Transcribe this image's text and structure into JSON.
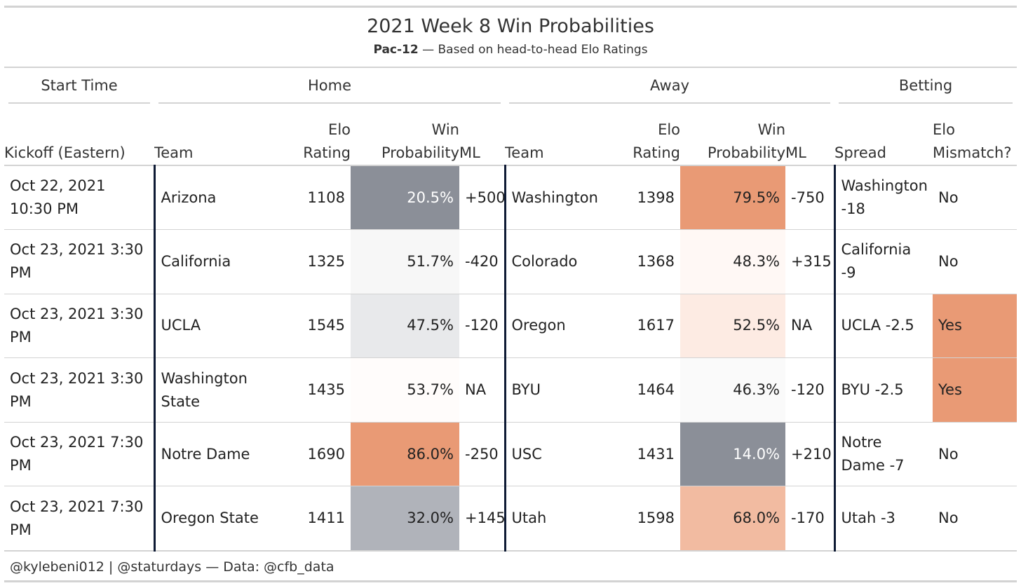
{
  "title": "2021 Week 8 Win Probabilities",
  "subtitle": {
    "bold": "Pac-12",
    "rest": " — Based on head-to-head Elo Ratings"
  },
  "spanners": {
    "start_time": "Start Time",
    "home": "Home",
    "away": "Away",
    "betting": "Betting"
  },
  "columns": {
    "kickoff": "Kickoff (Eastern)",
    "home_team": "Team",
    "home_elo_1": "Elo",
    "home_elo_2": "Rating",
    "home_wp_1": "Win",
    "home_wp_2": "Probability",
    "home_ml": "ML",
    "away_team": "Team",
    "away_elo_1": "Elo",
    "away_elo_2": "Rating",
    "away_wp_1": "Win",
    "away_wp_2": "Probability",
    "away_ml": "ML",
    "spread": "Spread",
    "mismatch_1": "Elo",
    "mismatch_2": "Mismatch?"
  },
  "colors": {
    "border_dark": "#0f1b35",
    "rule": "#d3d3d3",
    "mismatch_yes": "#e99a75"
  },
  "rows": [
    {
      "kickoff": "Oct 22, 2021 10:30 PM",
      "home_team": "Arizona",
      "home_elo": "1108",
      "home_wp": "20.5%",
      "home_wp_bg": "#8b8f98",
      "home_wp_fg": "#ffffff",
      "home_ml": "+500",
      "away_team": "Washington",
      "away_elo": "1398",
      "away_wp": "79.5%",
      "away_wp_bg": "#e99a75",
      "away_wp_fg": "#222222",
      "away_ml": "-750",
      "spread": "Washington -18",
      "mismatch": "No",
      "mismatch_bg": "#ffffff"
    },
    {
      "kickoff": "Oct 23, 2021 3:30 PM",
      "home_team": "California",
      "home_elo": "1325",
      "home_wp": "51.7%",
      "home_wp_bg": "#f7f7f7",
      "home_wp_fg": "#222222",
      "home_ml": "-420",
      "away_team": "Colorado",
      "away_elo": "1368",
      "away_wp": "48.3%",
      "away_wp_bg": "#fff8f5",
      "away_wp_fg": "#222222",
      "away_ml": "+315",
      "spread": "California -9",
      "mismatch": "No",
      "mismatch_bg": "#ffffff"
    },
    {
      "kickoff": "Oct 23, 2021 3:30 PM",
      "home_team": "UCLA",
      "home_elo": "1545",
      "home_wp": "47.5%",
      "home_wp_bg": "#e8e9eb",
      "home_wp_fg": "#222222",
      "home_ml": "-120",
      "away_team": "Oregon",
      "away_elo": "1617",
      "away_wp": "52.5%",
      "away_wp_bg": "#fdebe3",
      "away_wp_fg": "#222222",
      "away_ml": "NA",
      "spread": "UCLA -2.5",
      "mismatch": "Yes",
      "mismatch_bg": "#e99a75"
    },
    {
      "kickoff": "Oct 23, 2021 3:30 PM",
      "home_team": "Washington State",
      "home_elo": "1435",
      "home_wp": "53.7%",
      "home_wp_bg": "#fffcfb",
      "home_wp_fg": "#222222",
      "home_ml": "NA",
      "away_team": "BYU",
      "away_elo": "1464",
      "away_wp": "46.3%",
      "away_wp_bg": "#fafafa",
      "away_wp_fg": "#222222",
      "away_ml": "-120",
      "spread": "BYU -2.5",
      "mismatch": "Yes",
      "mismatch_bg": "#e99a75"
    },
    {
      "kickoff": "Oct 23, 2021 7:30 PM",
      "home_team": "Notre Dame",
      "home_elo": "1690",
      "home_wp": "86.0%",
      "home_wp_bg": "#e99a75",
      "home_wp_fg": "#222222",
      "home_ml": "-250",
      "away_team": "USC",
      "away_elo": "1431",
      "away_wp": "14.0%",
      "away_wp_bg": "#8b8f98",
      "away_wp_fg": "#ffffff",
      "away_ml": "+210",
      "spread": "Notre Dame -7",
      "mismatch": "No",
      "mismatch_bg": "#ffffff"
    },
    {
      "kickoff": "Oct 23, 2021 7:30 PM",
      "home_team": "Oregon State",
      "home_elo": "1411",
      "home_wp": "32.0%",
      "home_wp_bg": "#b0b3ba",
      "home_wp_fg": "#222222",
      "home_ml": "+145",
      "away_team": "Utah",
      "away_elo": "1598",
      "away_wp": "68.0%",
      "away_wp_bg": "#f2bba1",
      "away_wp_fg": "#222222",
      "away_ml": "-170",
      "spread": "Utah -3",
      "mismatch": "No",
      "mismatch_bg": "#ffffff"
    }
  ],
  "footer": "@kylebeni012 | @staturdays — Data: @cfb_data"
}
